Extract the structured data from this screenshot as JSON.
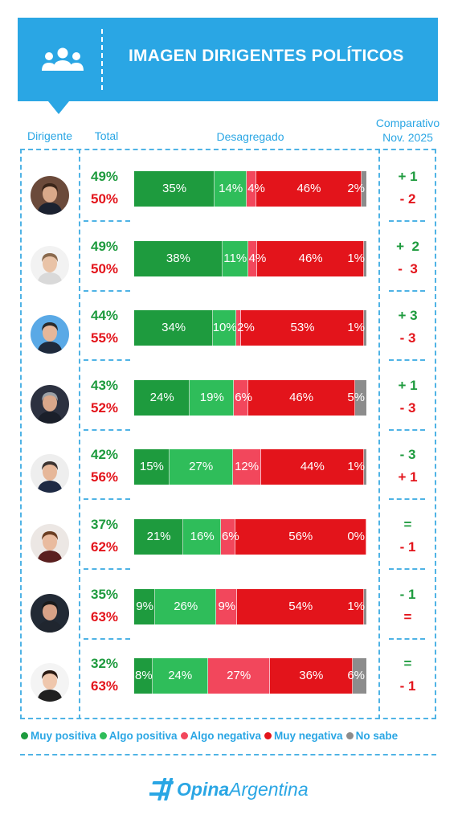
{
  "header": {
    "title": "IMAGEN DIRIGENTES POLÍTICOS",
    "col_dirigente": "Dirigente",
    "col_total": "Total",
    "col_desagregado": "Desagregado",
    "col_comparativo_1": "Comparativo",
    "col_comparativo_2": "Nov. 2025"
  },
  "colors": {
    "muy_positiva": "#1e9b3e",
    "algo_positiva": "#2fbd5a",
    "algo_negativa": "#f2475c",
    "muy_negativa": "#e3141b",
    "no_sabe": "#8c8c8c",
    "accent": "#2aa6e4"
  },
  "legend": [
    {
      "label": "Muy positiva",
      "color": "#1e9b3e"
    },
    {
      "label": "Algo positiva",
      "color": "#2fbd5a"
    },
    {
      "label": "Algo negativa",
      "color": "#f2475c"
    },
    {
      "label": "Muy negativa",
      "color": "#e3141b"
    },
    {
      "label": "No sabe",
      "color": "#8c8c8c"
    }
  ],
  "logo": {
    "strong": "Opina",
    "rest": "Argentina"
  },
  "chart_data": {
    "type": "bar",
    "stacked": true,
    "orientation": "horizontal",
    "title": "IMAGEN DIRIGENTES POLÍTICOS",
    "series_names": [
      "Muy positiva",
      "Algo positiva",
      "Algo negativa",
      "Muy negativa",
      "No sabe"
    ],
    "rows": [
      {
        "positive_total": "49%",
        "negative_total": "50%",
        "values": [
          35,
          14,
          4,
          46,
          2
        ],
        "labels": [
          "35%",
          "14%",
          "4%",
          "46%",
          "2%"
        ],
        "cmp_positive": "+ 1",
        "cmp_negative": "- 2"
      },
      {
        "positive_total": "49%",
        "negative_total": "50%",
        "values": [
          38,
          11,
          4,
          46,
          1
        ],
        "labels": [
          "38%",
          "11%",
          "4%",
          "46%",
          "1%"
        ],
        "cmp_positive": "+  2",
        "cmp_negative": "-  3"
      },
      {
        "positive_total": "44%",
        "negative_total": "55%",
        "values": [
          34,
          10,
          2,
          53,
          1
        ],
        "labels": [
          "34%",
          "10%",
          "2%",
          "53%",
          "1%"
        ],
        "cmp_positive": "+ 3",
        "cmp_negative": "- 3"
      },
      {
        "positive_total": "43%",
        "negative_total": "52%",
        "values": [
          24,
          19,
          6,
          46,
          5
        ],
        "labels": [
          "24%",
          "19%",
          "6%",
          "46%",
          "5%"
        ],
        "cmp_positive": "+ 1",
        "cmp_negative": "- 3"
      },
      {
        "positive_total": "42%",
        "negative_total": "56%",
        "values": [
          15,
          27,
          12,
          44,
          1
        ],
        "labels": [
          "15%",
          "27%",
          "12%",
          "44%",
          "1%"
        ],
        "cmp_positive": "- 3",
        "cmp_negative": "+ 1"
      },
      {
        "positive_total": "37%",
        "negative_total": "62%",
        "values": [
          21,
          16,
          6,
          56,
          0
        ],
        "labels": [
          "21%",
          "16%",
          "6%",
          "56%",
          "0%"
        ],
        "cmp_positive": "=",
        "cmp_negative": "- 1"
      },
      {
        "positive_total": "35%",
        "negative_total": "63%",
        "values": [
          9,
          26,
          9,
          54,
          1
        ],
        "labels": [
          "9%",
          "26%",
          "9%",
          "54%",
          "1%"
        ],
        "cmp_positive": "- 1",
        "cmp_negative": "="
      },
      {
        "positive_total": "32%",
        "negative_total": "63%",
        "values": [
          8,
          24,
          27,
          36,
          6
        ],
        "labels": [
          "8%",
          "24%",
          "27%",
          "36%",
          "6%"
        ],
        "cmp_positive": "=",
        "cmp_negative": "- 1"
      }
    ]
  }
}
